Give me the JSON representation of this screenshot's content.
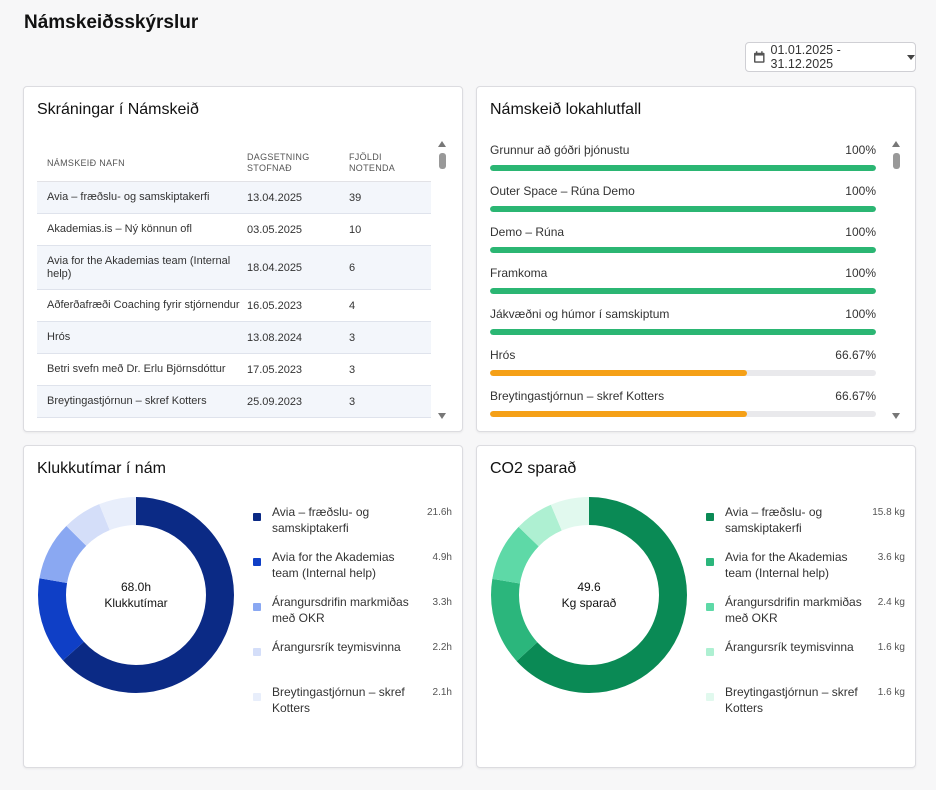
{
  "page": {
    "title": "Námskeiðsskýrslur"
  },
  "date_range": "01.01.2025 - 31.12.2025",
  "registrations": {
    "title": "Skráningar í Námskeið",
    "headers": {
      "name": "NÁMSKEIÐ NAFN",
      "date_l1": "DAGSETNING",
      "date_l2": "STOFNAÐ",
      "count_l1": "FJÖLDI",
      "count_l2": "NOTENDA"
    },
    "rows": [
      {
        "name": "Avia – fræðslu- og samskiptakerfi",
        "date": "13.04.2025",
        "count": "39"
      },
      {
        "name": "Akademias.is – Ný könnun ofl",
        "date": "03.05.2025",
        "count": "10"
      },
      {
        "name": "Avia for the Akademias team (Internal help)",
        "date": "18.04.2025",
        "count": "6"
      },
      {
        "name": "Aðferðafræði Coaching fyrir stjórnendur",
        "date": "16.05.2023",
        "count": "4"
      },
      {
        "name": "Hrós",
        "date": "13.08.2024",
        "count": "3"
      },
      {
        "name": "Betri svefn með Dr. Erlu Björnsdóttur",
        "date": "17.05.2023",
        "count": "3"
      },
      {
        "name": "Breytingastjórnun – skref Kotters",
        "date": "25.09.2023",
        "count": "3"
      }
    ]
  },
  "completion": {
    "title": "Námskeið lokahlutfall",
    "colors": {
      "full": "#2bb673",
      "partial": "#f5a017"
    },
    "items": [
      {
        "label": "Grunnur að góðri þjónustu",
        "pct_text": "100%",
        "value": 100
      },
      {
        "label": "Outer Space – Rúna Demo",
        "pct_text": "100%",
        "value": 100
      },
      {
        "label": "Demo – Rúna",
        "pct_text": "100%",
        "value": 100
      },
      {
        "label": "Framkoma",
        "pct_text": "100%",
        "value": 100
      },
      {
        "label": "Jákvæðni og húmor í samskiptum",
        "pct_text": "100%",
        "value": 100
      },
      {
        "label": "Hrós",
        "pct_text": "66.67%",
        "value": 66.67
      },
      {
        "label": "Breytingastjórnun – skref Kotters",
        "pct_text": "66.67%",
        "value": 66.67
      }
    ]
  },
  "hours": {
    "title": "Klukkutímar í nám",
    "center_value": "68.0h",
    "center_label": "Klukkutímar",
    "items": [
      {
        "label": "Avia – fræðslu- og samskiptakerfi",
        "value_text": "21.6h",
        "value": 21.6,
        "color": "#0b2a85"
      },
      {
        "label": "Avia for the Akademias team (Internal help)",
        "value_text": "4.9h",
        "value": 4.9,
        "color": "#0f3fc6"
      },
      {
        "label": "Árangursdrifin markmiðas með OKR",
        "value_text": "3.3h",
        "value": 3.3,
        "color": "#8aa8f2"
      },
      {
        "label": "Árangursrík teymisvinna",
        "value_text": "2.2h",
        "value": 2.2,
        "color": "#d4def9"
      },
      {
        "label": "Breytingastjórnun – skref Kotters",
        "value_text": "2.1h",
        "value": 2.1,
        "color": "#e8eefb"
      }
    ]
  },
  "co2": {
    "title": "CO2 sparað",
    "center_value": "49.6",
    "center_label": "Kg sparað",
    "items": [
      {
        "label": "Avia – fræðslu- og samskiptakerfi",
        "value_text": "15.8 kg",
        "value": 15.8,
        "color": "#0a8a55"
      },
      {
        "label": "Avia for the Akademias team (Internal help)",
        "value_text": "3.6 kg",
        "value": 3.6,
        "color": "#2bb67c"
      },
      {
        "label": "Árangursdrifin markmiðas með OKR",
        "value_text": "2.4 kg",
        "value": 2.4,
        "color": "#5ed9a7"
      },
      {
        "label": "Árangursrík teymisvinna",
        "value_text": "1.6 kg",
        "value": 1.6,
        "color": "#aef0d2"
      },
      {
        "label": "Breytingastjórnun – skref Kotters",
        "value_text": "1.6 kg",
        "value": 1.6,
        "color": "#e1f9ee"
      }
    ]
  }
}
